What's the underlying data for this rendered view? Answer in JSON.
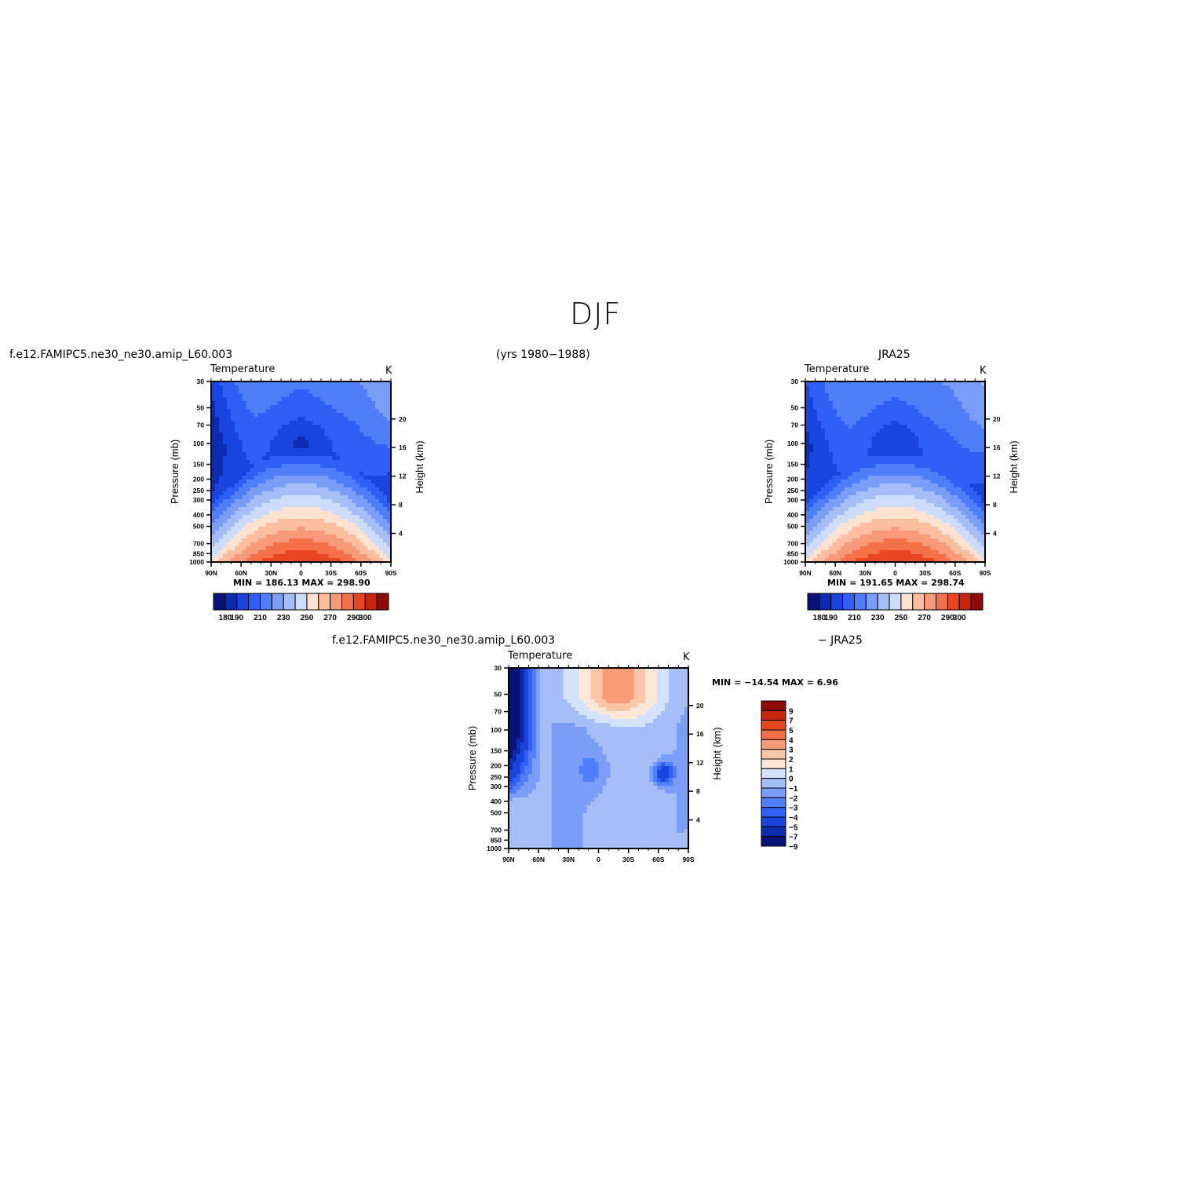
{
  "header": {
    "title": "DJF",
    "case_name": "f.e12.FAMIPC5.ne30_ne30.amip_L60.003",
    "years": "(yrs 1980−1988)",
    "obs_name": "JRA25",
    "diff_case": "f.e12.FAMIPC5.ne30_ne30.amip_L60.003",
    "diff_obs": "− JRA25"
  },
  "axes": {
    "pressure_label": "Pressure (mb)",
    "height_label": "Height (km)",
    "pressure_ticks": [
      "30",
      "50",
      "70",
      "100",
      "150",
      "200",
      "250",
      "300",
      "400",
      "500",
      "700",
      "850",
      "1000"
    ],
    "height_ticks": [
      "20",
      "16",
      "12",
      "8",
      "4"
    ],
    "lat_ticks": [
      "90N",
      "60N",
      "30N",
      "0",
      "30S",
      "60S",
      "90S"
    ]
  },
  "chart_data": [
    {
      "type": "heatmap",
      "panel": "model",
      "title": "Temperature",
      "units": "K",
      "xlabel": "",
      "ylabel": "Pressure (mb)",
      "y2label": "Height (km)",
      "x": [
        "90N",
        "60N",
        "30N",
        "0",
        "30S",
        "60S",
        "90S"
      ],
      "y": [
        30,
        50,
        70,
        100,
        150,
        200,
        250,
        300,
        400,
        500,
        700,
        850,
        1000
      ],
      "min": 186.13,
      "max": 298.9,
      "min_max_text": "MIN = 186.13   MAX = 298.90",
      "levels": [
        180,
        190,
        200,
        210,
        220,
        230,
        240,
        250,
        260,
        270,
        280,
        290,
        300
      ],
      "colorbar_labels": [
        "180",
        "190",
        "210",
        "230",
        "250",
        "270",
        "290",
        "300"
      ]
    },
    {
      "type": "heatmap",
      "panel": "obs",
      "title": "Temperature",
      "units": "K",
      "xlabel": "",
      "ylabel": "Pressure (mb)",
      "y2label": "Height (km)",
      "x": [
        "90N",
        "60N",
        "30N",
        "0",
        "30S",
        "60S",
        "90S"
      ],
      "y": [
        30,
        50,
        70,
        100,
        150,
        200,
        250,
        300,
        400,
        500,
        700,
        850,
        1000
      ],
      "min": 191.65,
      "max": 298.74,
      "min_max_text": "MIN = 191.65   MAX = 298.74",
      "levels": [
        180,
        190,
        200,
        210,
        220,
        230,
        240,
        250,
        260,
        270,
        280,
        290,
        300
      ],
      "colorbar_labels": [
        "180",
        "190",
        "210",
        "230",
        "250",
        "270",
        "290",
        "300"
      ]
    },
    {
      "type": "heatmap",
      "panel": "difference",
      "title": "Temperature",
      "units": "K",
      "xlabel": "",
      "ylabel": "Pressure (mb)",
      "y2label": "Height (km)",
      "x": [
        "90N",
        "60N",
        "30N",
        "0",
        "30S",
        "60S",
        "90S"
      ],
      "y": [
        30,
        50,
        70,
        100,
        150,
        200,
        250,
        300,
        400,
        500,
        700,
        850,
        1000
      ],
      "min": -14.54,
      "max": 6.96,
      "min_max_text": "MIN = −14.54   MAX =    6.96",
      "levels": [
        -9,
        -7,
        -5,
        -4,
        -3,
        -2,
        -1,
        0,
        1,
        2,
        3,
        4,
        5,
        7,
        9
      ],
      "colorbar_labels": [
        "9",
        "7",
        "5",
        "4",
        "3",
        "2",
        "1",
        "0",
        "−1",
        "−2",
        "−3",
        "−4",
        "−5",
        "−7",
        "−9"
      ]
    }
  ],
  "palette": {
    "temperature": [
      "#08137a",
      "#0d2bb0",
      "#1a44de",
      "#2f5ff5",
      "#4f7ef8",
      "#7a9ef8",
      "#a5bef8",
      "#cddcfa",
      "#fde3cf",
      "#fbbf9f",
      "#f8997a",
      "#f47048",
      "#e84620",
      "#c6250e",
      "#8f0b07"
    ],
    "difference": [
      "#08137a",
      "#0d2bb0",
      "#1a44de",
      "#2f5ff5",
      "#4f7ef8",
      "#7a9ef8",
      "#a5bef8",
      "#d4e2fb",
      "#fde8d8",
      "#fbc6a8",
      "#f89c78",
      "#f47048",
      "#e84620",
      "#c6250e",
      "#8f0b07"
    ]
  }
}
